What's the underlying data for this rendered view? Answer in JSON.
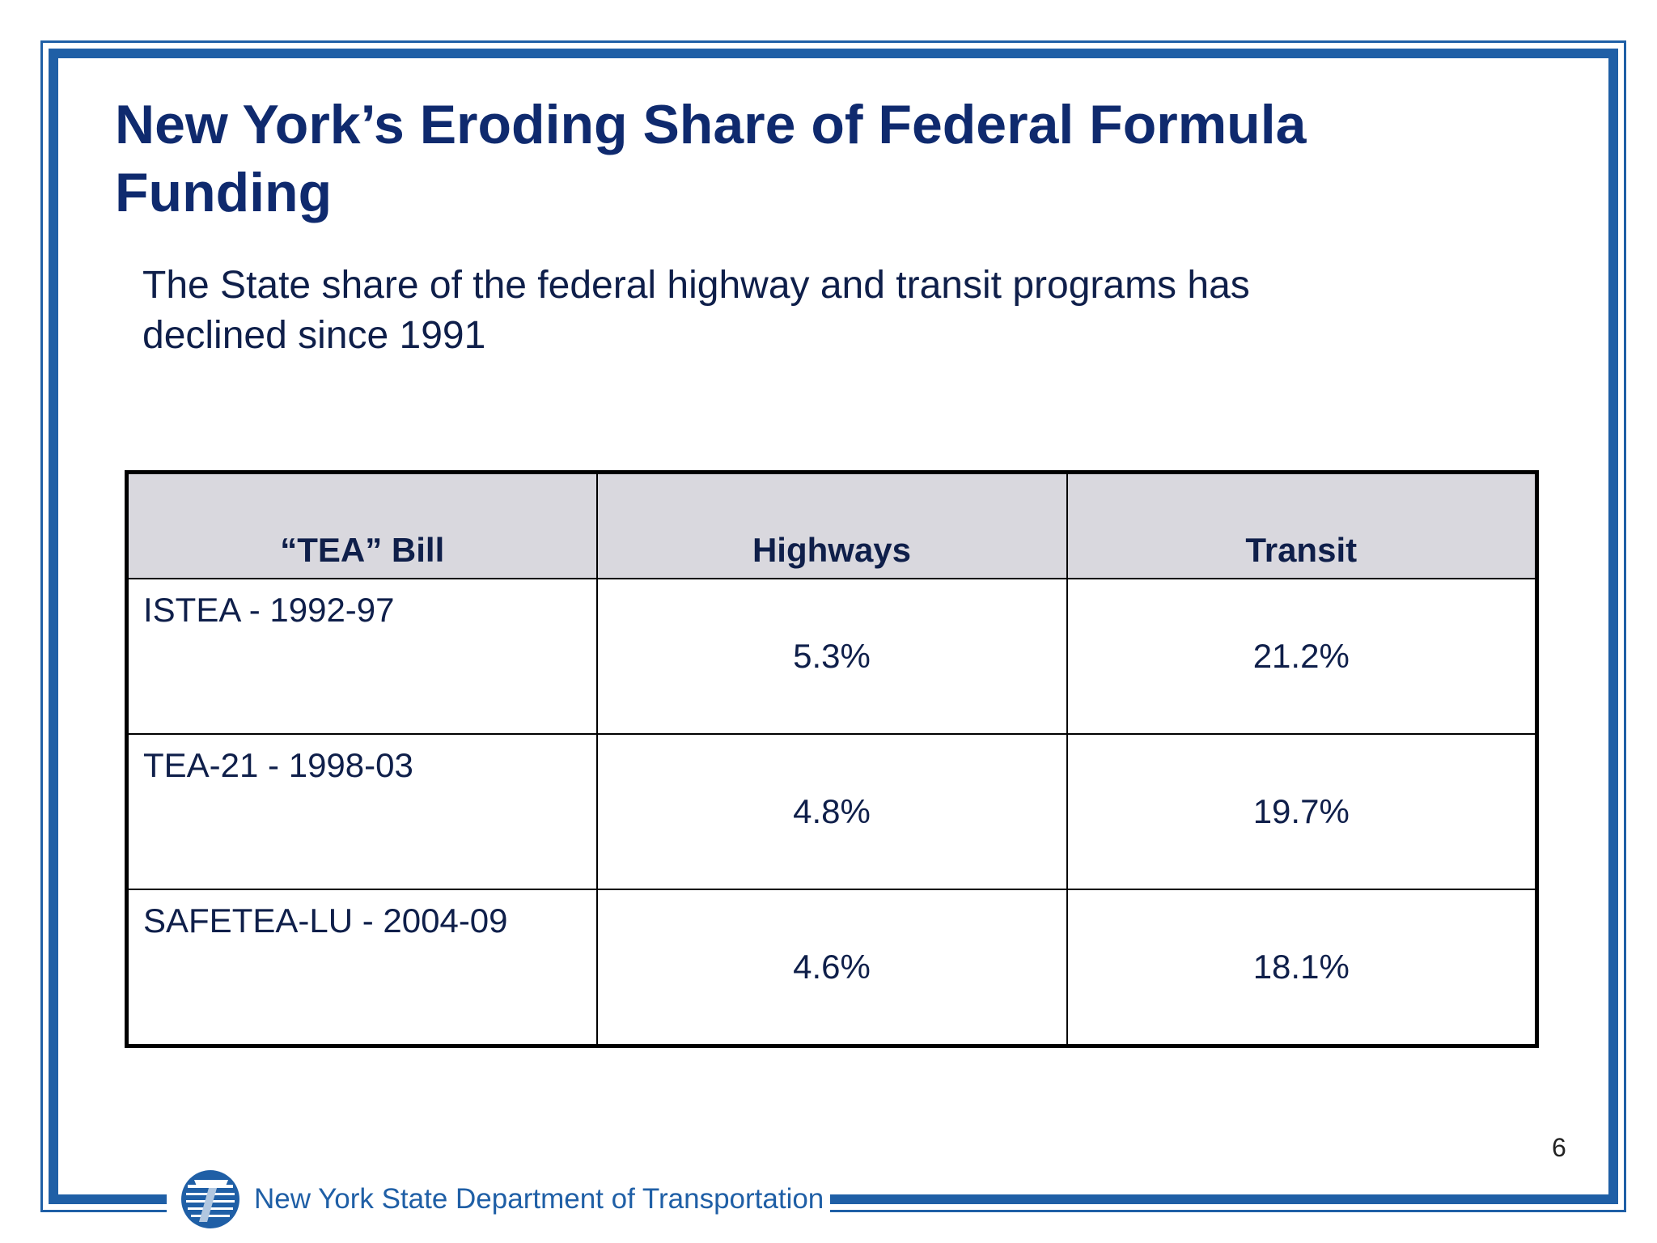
{
  "slide": {
    "title_line1": "New York’s Eroding Share of Federal Formula",
    "title_line2": "Funding",
    "subtitle_line1": "The State share of the federal highway and transit programs has",
    "subtitle_line2": "declined since 1991",
    "page_number": "6"
  },
  "table": {
    "headers": [
      "“TEA” Bill",
      "Highways",
      "Transit"
    ],
    "rows": [
      {
        "bill": "ISTEA - 1992-97",
        "highways": "5.3%",
        "transit": "21.2%"
      },
      {
        "bill": "TEA-21 - 1998-03",
        "highways": "4.8%",
        "transit": "19.7%"
      },
      {
        "bill": "SAFETEA-LU - 2004-09",
        "highways": "4.6%",
        "transit": "18.1%"
      }
    ]
  },
  "footer": {
    "org_name": "New York State Department of Transportation",
    "logo_icon": "nysdot-logo-icon"
  },
  "colors": {
    "frame": "#1f5fa6",
    "title": "#0f2a6e",
    "header_fill": "#d9d8de"
  }
}
